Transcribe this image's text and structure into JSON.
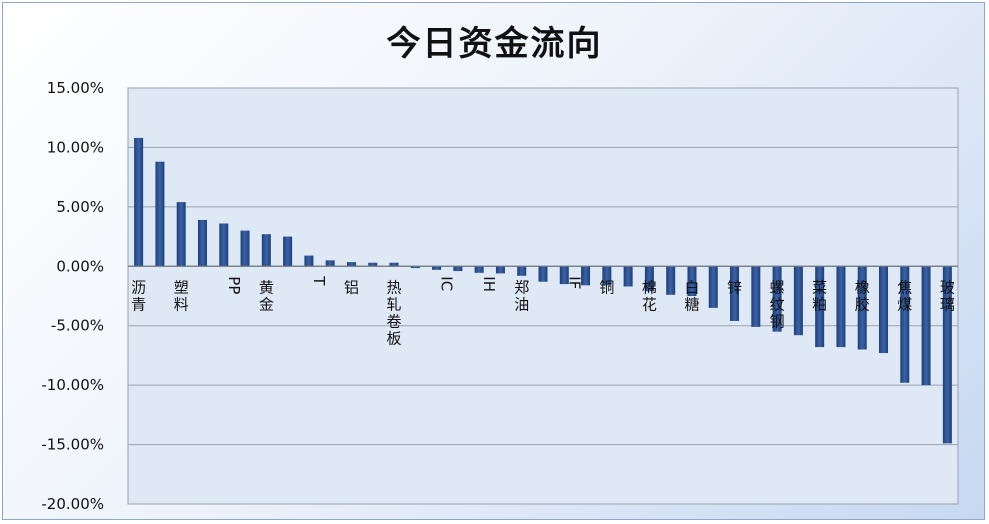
{
  "chart_data": {
    "type": "bar",
    "title": "今日资金流向",
    "xlabel": "",
    "ylabel": "",
    "ylim": [
      -20,
      15
    ],
    "yticks": [
      "15.00%",
      "10.00%",
      "5.00%",
      "0.00%",
      "-5.00%",
      "-10.00%",
      "-15.00%",
      "-20.00%"
    ],
    "grid": true,
    "colors": {
      "bar": "#3a63a8",
      "bar_dark": "#1f3f78",
      "plot_bg": "#dfe8f5",
      "grid": "#9aa3ad"
    },
    "categories": [
      "沥青",
      "",
      "塑料",
      "",
      "PP",
      "",
      "黄金",
      "",
      "T",
      "",
      "铝",
      "",
      "热轧卷板",
      "",
      "IC",
      "",
      "IH",
      "",
      "郑油",
      "",
      "IF",
      "",
      "铜",
      "",
      "棉花",
      "",
      "白糖",
      "",
      "锌",
      "",
      "螺纹钢",
      "",
      "菜粕",
      "",
      "橡胶",
      "",
      "焦煤",
      "",
      "玻璃"
    ],
    "values": [
      10.8,
      8.8,
      5.4,
      3.9,
      3.6,
      3.0,
      2.7,
      2.5,
      0.9,
      0.5,
      0.35,
      0.3,
      0.3,
      -0.15,
      -0.3,
      -0.4,
      -0.55,
      -0.6,
      -0.8,
      -1.3,
      -1.5,
      -1.6,
      -1.6,
      -1.7,
      -2.1,
      -2.4,
      -2.5,
      -3.5,
      -4.6,
      -5.1,
      -5.5,
      -5.8,
      -6.8,
      -6.8,
      -7.0,
      -7.3,
      -9.8,
      -10.0,
      -14.9
    ]
  }
}
